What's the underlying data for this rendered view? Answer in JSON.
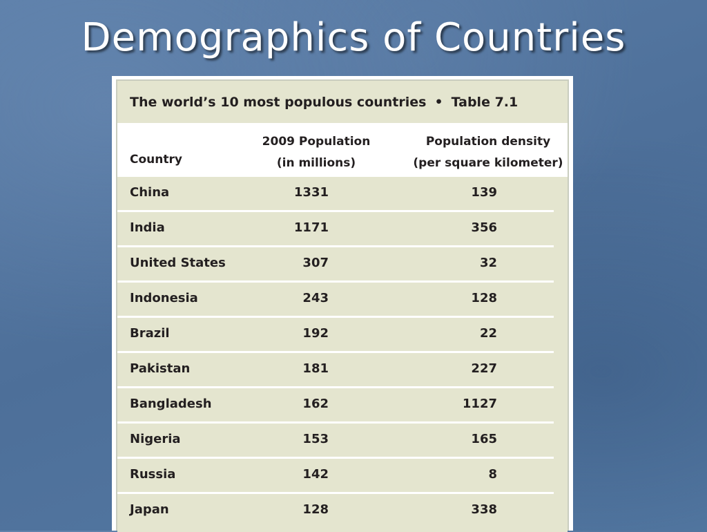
{
  "slide": {
    "title": "Demographics of Countries"
  },
  "table": {
    "caption": "The world’s 10 most populous countries",
    "separator": "•",
    "table_number": "Table 7.1",
    "headers": {
      "country": "Country",
      "population_line1": "2009 Population",
      "population_line2": "(in millions)",
      "density_line1": "Population density",
      "density_line2": "(per square kilometer)"
    },
    "rows": [
      {
        "country": "China",
        "population": "1331",
        "density": "139"
      },
      {
        "country": "India",
        "population": "1171",
        "density": "356"
      },
      {
        "country": "United States",
        "population": "307",
        "density": "32"
      },
      {
        "country": "Indonesia",
        "population": "243",
        "density": "128"
      },
      {
        "country": "Brazil",
        "population": "192",
        "density": "22"
      },
      {
        "country": "Pakistan",
        "population": "181",
        "density": "227"
      },
      {
        "country": "Bangladesh",
        "population": "162",
        "density": "1127"
      },
      {
        "country": "Nigeria",
        "population": "153",
        "density": "165"
      },
      {
        "country": "Russia",
        "population": "142",
        "density": "8"
      },
      {
        "country": "Japan",
        "population": "128",
        "density": "338"
      }
    ]
  },
  "colors": {
    "slide_background": "#5577a0",
    "table_fill": "#e4e5cf",
    "text": "#231f20"
  }
}
